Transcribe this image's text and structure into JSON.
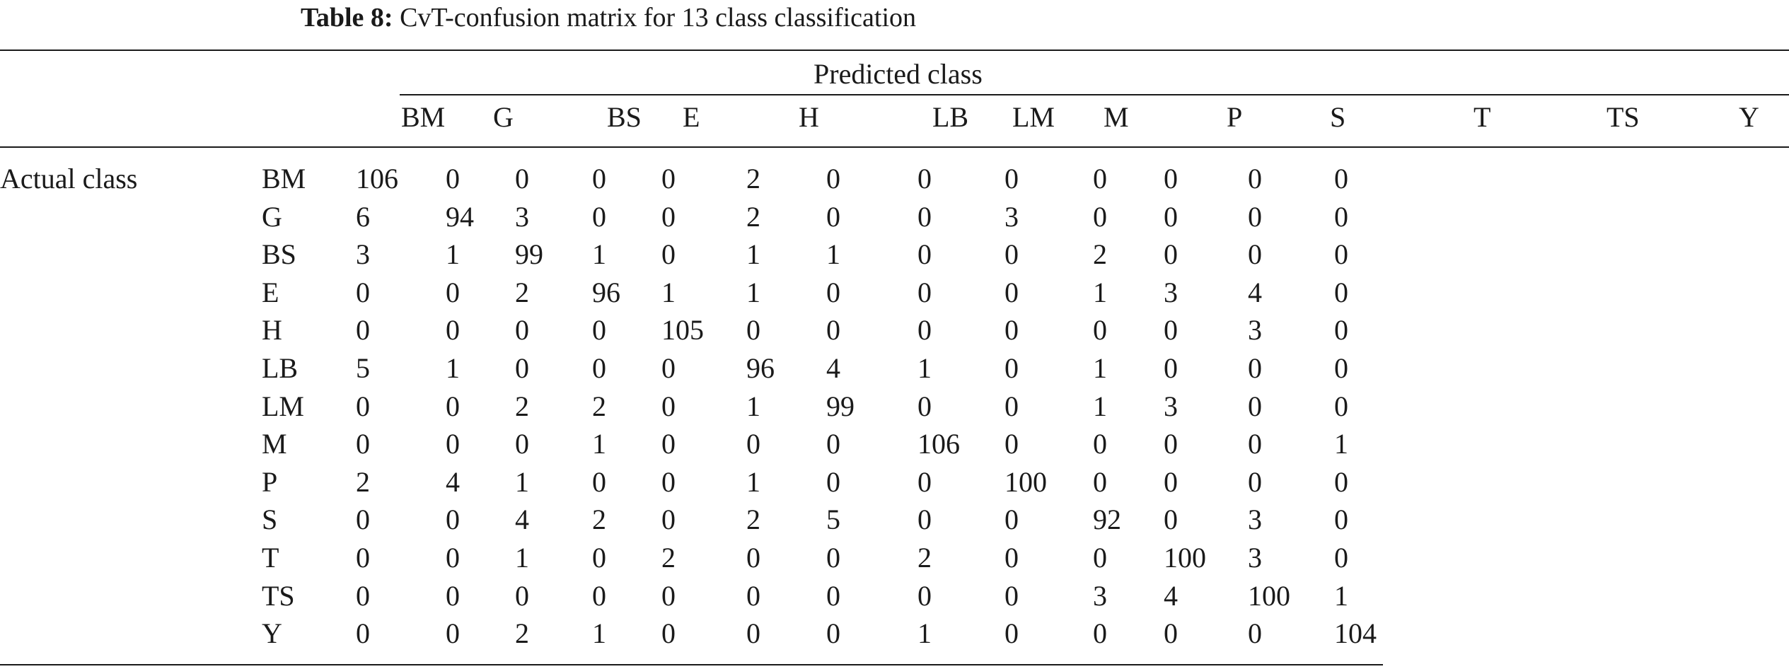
{
  "caption": {
    "label": "Table 8:",
    "text": "CvT-confusion matrix for 13 class classification"
  },
  "header": {
    "group_label": "Predicted class",
    "columns": [
      "BM",
      "G",
      "BS",
      "E",
      "H",
      "LB",
      "LM",
      "M",
      "P",
      "S",
      "T",
      "TS",
      "Y"
    ]
  },
  "stub_label": "Actual class",
  "rows": [
    {
      "label": "BM",
      "values": [
        "106",
        "0",
        "0",
        "0",
        "0",
        "2",
        "0",
        "0",
        "0",
        "0",
        "0",
        "0",
        "0"
      ]
    },
    {
      "label": "G",
      "values": [
        "6",
        "94",
        "3",
        "0",
        "0",
        "2",
        "0",
        "0",
        "3",
        "0",
        "0",
        "0",
        "0"
      ]
    },
    {
      "label": "BS",
      "values": [
        "3",
        "1",
        "99",
        "1",
        "0",
        "1",
        "1",
        "0",
        "0",
        "2",
        "0",
        "0",
        "0"
      ]
    },
    {
      "label": "E",
      "values": [
        "0",
        "0",
        "2",
        "96",
        "1",
        "1",
        "0",
        "0",
        "0",
        "1",
        "3",
        "4",
        "0"
      ]
    },
    {
      "label": "H",
      "values": [
        "0",
        "0",
        "0",
        "0",
        "105",
        "0",
        "0",
        "0",
        "0",
        "0",
        "0",
        "3",
        "0"
      ]
    },
    {
      "label": "LB",
      "values": [
        "5",
        "1",
        "0",
        "0",
        "0",
        "96",
        "4",
        "1",
        "0",
        "1",
        "0",
        "0",
        "0"
      ]
    },
    {
      "label": "LM",
      "values": [
        "0",
        "0",
        "2",
        "2",
        "0",
        "1",
        "99",
        "0",
        "0",
        "1",
        "3",
        "0",
        "0"
      ]
    },
    {
      "label": "M",
      "values": [
        "0",
        "0",
        "0",
        "1",
        "0",
        "0",
        "0",
        "106",
        "0",
        "0",
        "0",
        "0",
        "1"
      ]
    },
    {
      "label": "P",
      "values": [
        "2",
        "4",
        "1",
        "0",
        "0",
        "1",
        "0",
        "0",
        "100",
        "0",
        "0",
        "0",
        "0"
      ]
    },
    {
      "label": "S",
      "values": [
        "0",
        "0",
        "4",
        "2",
        "0",
        "2",
        "5",
        "0",
        "0",
        "92",
        "0",
        "3",
        "0"
      ]
    },
    {
      "label": "T",
      "values": [
        "0",
        "0",
        "1",
        "0",
        "2",
        "0",
        "0",
        "2",
        "0",
        "0",
        "100",
        "3",
        "0"
      ]
    },
    {
      "label": "TS",
      "values": [
        "0",
        "0",
        "0",
        "0",
        "0",
        "0",
        "0",
        "0",
        "0",
        "3",
        "4",
        "100",
        "1"
      ]
    },
    {
      "label": "Y",
      "values": [
        "0",
        "0",
        "2",
        "1",
        "0",
        "0",
        "0",
        "1",
        "0",
        "0",
        "0",
        "0",
        "104"
      ]
    }
  ]
}
